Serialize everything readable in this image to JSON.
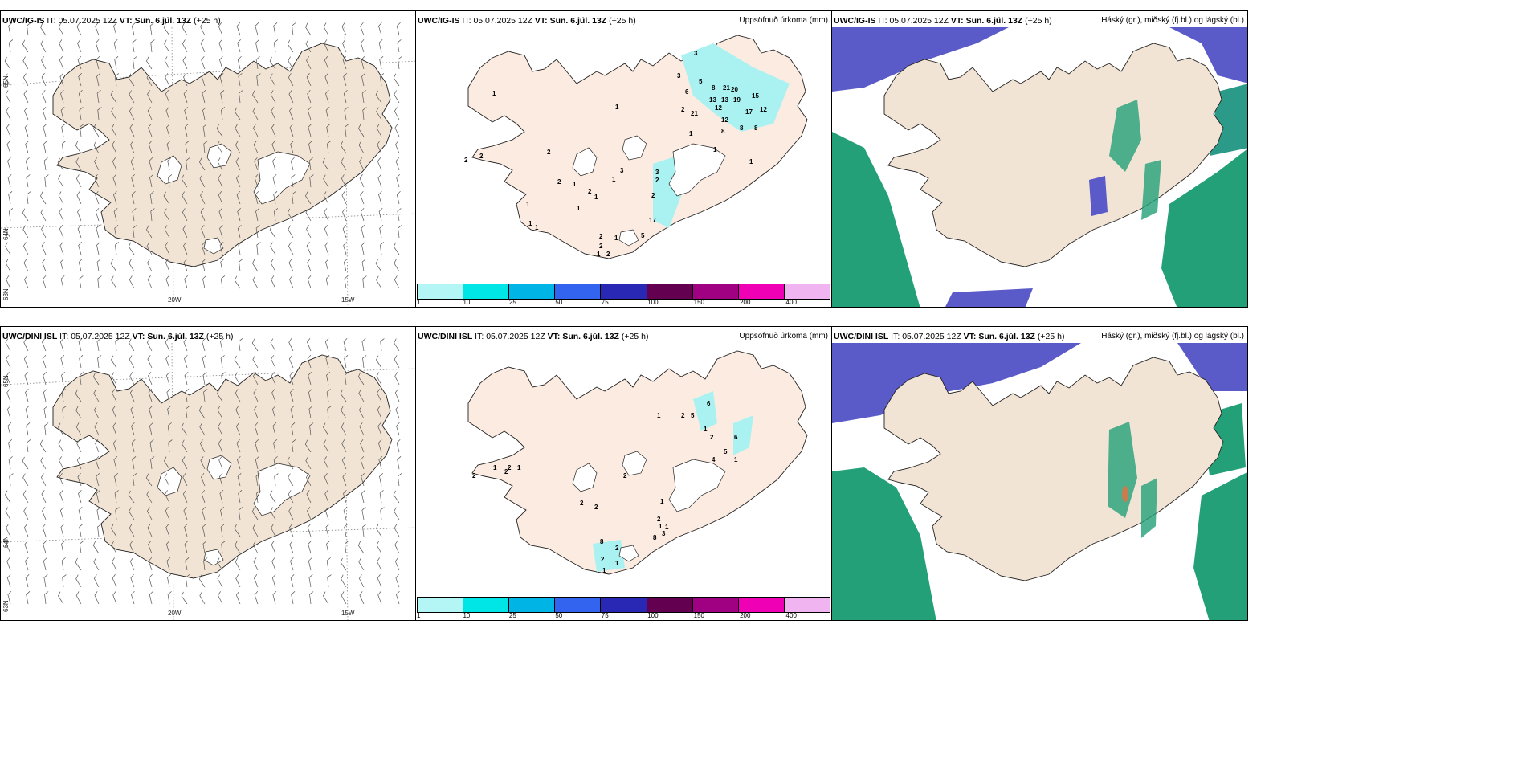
{
  "panels": {
    "p1": {
      "model": "UWC/IG-IS",
      "it_label": "IT:",
      "it": "05.07.2025 12Z",
      "vt_label": "VT:",
      "vt": "Sun. 6.júl. 13Z",
      "lead": "(+25 h)",
      "title": ""
    },
    "p2": {
      "model": "UWC/IG-IS",
      "it_label": "IT:",
      "it": "05.07.2025 12Z",
      "vt_label": "VT:",
      "vt": "Sun. 6.júl. 13Z",
      "lead": "(+25 h)",
      "title": "Uppsöfnuð úrkoma (mm)"
    },
    "p3": {
      "model": "UWC/IG-IS",
      "it_label": "IT:",
      "it": "05.07.2025 12Z",
      "vt_label": "VT:",
      "vt": "Sun. 6.júl. 13Z",
      "lead": "(+25 h)",
      "title": "Háský (gr.), miðský (fj.bl.) og lágský (bl.)"
    },
    "p4": {
      "model": "UWC/DINI ISL",
      "it_label": "IT:",
      "it": "05.07.2025 12Z",
      "vt_label": "VT:",
      "vt": "Sun. 6.júl. 13Z",
      "lead": "(+25 h)",
      "title": ""
    },
    "p5": {
      "model": "UWC/DINI ISL",
      "it_label": "IT:",
      "it": "05.07.2025 12Z",
      "vt_label": "VT:",
      "vt": "Sun. 6.júl. 13Z",
      "lead": "(+25 h)",
      "title": "Uppsöfnuð úrkoma (mm)"
    },
    "p6": {
      "model": "UWC/DINI ISL",
      "it_label": "IT:",
      "it": "05.07.2025 12Z",
      "vt_label": "VT:",
      "vt": "Sun. 6.júl. 13Z",
      "lead": "(+25 h)",
      "title": "Háský (gr.), miðský (fj.bl.) og lágský (bl.)"
    }
  },
  "graticule": {
    "lon": [
      "20W",
      "15W"
    ],
    "lat": [
      "65N",
      "64N",
      "63N"
    ]
  },
  "colorbar": {
    "ticks": [
      "1",
      "10",
      "25",
      "50",
      "75",
      "100",
      "150",
      "200",
      "400"
    ],
    "colors": [
      "#b4f5f5",
      "#00e6e6",
      "#00b4e6",
      "#3264f0",
      "#2828b4",
      "#640050",
      "#a00082",
      "#f000b4",
      "#f0b4f0"
    ]
  },
  "colors": {
    "land": "#f2e4d4",
    "land_precip": "#fbebe0",
    "glacier": "#ffffff",
    "high_cloud": "#5a5ac8",
    "mid_cloud": "#23a078",
    "low_cloud": "#1ec8a0",
    "precip_light": "#aaf2f2"
  },
  "precip_values": {
    "ig": [
      "3",
      "3",
      "6",
      "5",
      "8",
      "21",
      "20",
      "15",
      "13",
      "13",
      "19",
      "12",
      "2",
      "21",
      "12",
      "17",
      "12",
      "8",
      "8",
      "8",
      "1",
      "1",
      "1",
      "1",
      "1",
      "2",
      "2",
      "2",
      "2",
      "1",
      "2",
      "1",
      "1",
      "3",
      "3",
      "2",
      "2",
      "17",
      "5",
      "1",
      "2",
      "2",
      "1",
      "2",
      "1",
      "1",
      "1",
      "1"
    ],
    "dini": [
      "1",
      "2",
      "5",
      "6",
      "1",
      "2",
      "6",
      "5",
      "4",
      "1",
      "2",
      "1",
      "2",
      "1",
      "2",
      "2",
      "2",
      "2",
      "1",
      "2",
      "1",
      "1",
      "3",
      "8",
      "8",
      "2",
      "2",
      "1",
      "1"
    ]
  }
}
